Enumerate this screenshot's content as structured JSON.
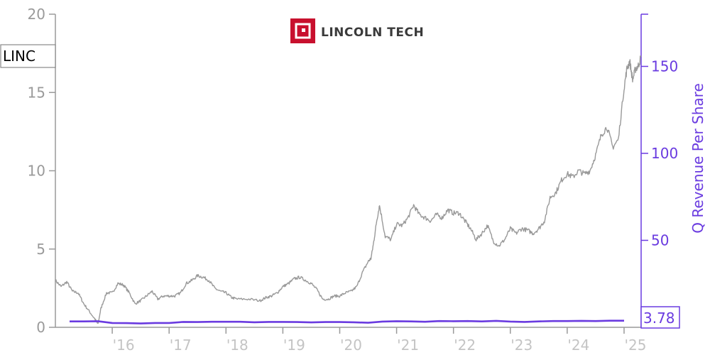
{
  "chart_data": {
    "type": "line",
    "ticker": "LINC",
    "logo_text": "LINCOLN TECH",
    "ylabel_right": "Q Revenue Per Share",
    "left_axis": {
      "min": 0,
      "max": 20,
      "ticks": [
        "0",
        "5",
        "10",
        "15",
        "20"
      ]
    },
    "right_axis": {
      "min": 0,
      "max": 180,
      "ticks": [
        "50",
        "100",
        "150"
      ]
    },
    "x_ticks": [
      "'16",
      "'17",
      "'18",
      "'19",
      "'20",
      "'21",
      "'22",
      "'23",
      "'24",
      "'25"
    ],
    "x_range": [
      2015.0,
      2025.3
    ],
    "grid": false,
    "colors": {
      "price": "#999999",
      "revenue": "#6a3be0",
      "logo": "#c8102e"
    },
    "last_value_label": "3.78",
    "series": [
      {
        "name": "LINC",
        "axis": "left",
        "x": [
          2015.0,
          2015.1,
          2015.2,
          2015.3,
          2015.4,
          2015.5,
          2015.6,
          2015.7,
          2015.75,
          2015.8,
          2015.9,
          2016.0,
          2016.1,
          2016.2,
          2016.3,
          2016.4,
          2016.5,
          2016.6,
          2016.7,
          2016.8,
          2016.9,
          2017.0,
          2017.1,
          2017.2,
          2017.3,
          2017.4,
          2017.5,
          2017.6,
          2017.7,
          2017.8,
          2017.9,
          2018.0,
          2018.1,
          2018.2,
          2018.4,
          2018.6,
          2018.7,
          2018.8,
          2018.9,
          2019.0,
          2019.1,
          2019.2,
          2019.3,
          2019.4,
          2019.5,
          2019.6,
          2019.7,
          2019.8,
          2019.9,
          2020.0,
          2020.1,
          2020.2,
          2020.3,
          2020.4,
          2020.5,
          2020.55,
          2020.6,
          2020.65,
          2020.7,
          2020.8,
          2020.9,
          2021.0,
          2021.1,
          2021.2,
          2021.3,
          2021.4,
          2021.5,
          2021.6,
          2021.7,
          2021.8,
          2021.9,
          2022.0,
          2022.1,
          2022.2,
          2022.3,
          2022.4,
          2022.5,
          2022.6,
          2022.7,
          2022.8,
          2022.9,
          2023.0,
          2023.1,
          2023.2,
          2023.3,
          2023.4,
          2023.5,
          2023.6,
          2023.7,
          2023.8,
          2023.9,
          2024.0,
          2024.1,
          2024.2,
          2024.3,
          2024.4,
          2024.5,
          2024.6,
          2024.7,
          2024.8,
          2024.9,
          2025.0,
          2025.05,
          2025.1,
          2025.15,
          2025.2,
          2025.25,
          2025.3
        ],
        "values": [
          3.0,
          2.6,
          2.9,
          2.3,
          2.2,
          1.5,
          1.0,
          0.5,
          0.2,
          1.2,
          2.2,
          2.2,
          2.8,
          2.7,
          2.2,
          1.5,
          1.7,
          2.0,
          2.3,
          1.8,
          2.0,
          2.0,
          2.0,
          2.2,
          2.8,
          3.0,
          3.3,
          3.2,
          3.0,
          2.5,
          2.3,
          2.2,
          1.9,
          1.8,
          1.8,
          1.7,
          1.9,
          2.0,
          2.2,
          2.6,
          2.8,
          3.1,
          3.2,
          3.0,
          2.8,
          2.4,
          1.8,
          1.8,
          2.0,
          2.0,
          2.2,
          2.3,
          2.6,
          3.5,
          4.2,
          4.4,
          5.5,
          6.8,
          7.8,
          5.8,
          5.6,
          6.6,
          6.5,
          7.0,
          7.8,
          7.2,
          7.0,
          6.8,
          7.2,
          7.0,
          7.5,
          7.3,
          7.3,
          6.8,
          6.3,
          5.6,
          6.0,
          6.5,
          5.5,
          5.2,
          5.6,
          6.3,
          6.0,
          6.3,
          6.2,
          6.0,
          6.3,
          6.8,
          8.3,
          8.6,
          9.4,
          9.8,
          9.6,
          10.0,
          9.8,
          10.0,
          11.0,
          12.3,
          12.8,
          11.5,
          12.0,
          15.3,
          16.5,
          17.0,
          15.8,
          16.5,
          16.7,
          17.3
        ]
      },
      {
        "name": "Q Revenue Per Share",
        "axis": "right",
        "x": [
          2015.25,
          2015.5,
          2015.75,
          2016.0,
          2016.25,
          2016.5,
          2016.75,
          2017.0,
          2017.25,
          2017.5,
          2017.75,
          2018.0,
          2018.25,
          2018.5,
          2018.75,
          2019.0,
          2019.25,
          2019.5,
          2019.75,
          2020.0,
          2020.25,
          2020.5,
          2020.75,
          2021.0,
          2021.25,
          2021.5,
          2021.75,
          2022.0,
          2022.25,
          2022.5,
          2022.75,
          2023.0,
          2023.25,
          2023.5,
          2023.75,
          2024.0,
          2024.25,
          2024.5,
          2024.75,
          2025.0
        ],
        "values": [
          3.4,
          3.4,
          3.5,
          2.5,
          2.4,
          2.2,
          2.5,
          2.5,
          3.1,
          3.0,
          3.2,
          3.2,
          3.2,
          2.9,
          3.1,
          3.1,
          3.0,
          2.8,
          3.0,
          3.0,
          2.9,
          2.6,
          3.3,
          3.5,
          3.4,
          3.2,
          3.6,
          3.5,
          3.6,
          3.4,
          3.7,
          3.3,
          3.1,
          3.4,
          3.6,
          3.6,
          3.7,
          3.6,
          3.8,
          3.78
        ]
      }
    ]
  }
}
